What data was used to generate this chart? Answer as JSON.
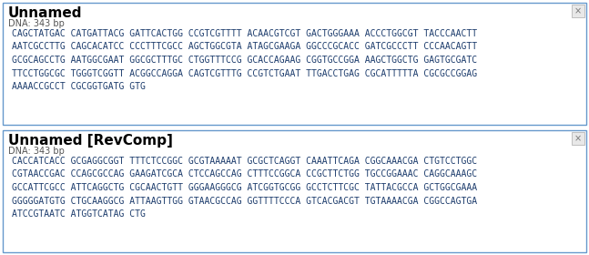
{
  "panel1_title": "Unnamed",
  "panel1_subtitle": "DNA: 343 bp",
  "panel1_lines": [
    "CAGCTATGAC CATGATTACG GATTCACTGG CCGTCGTTTT ACAACGTCGT GACTGGGAAA ACCCTGGCGT TACCCAACTT",
    "AATCGCCTTG CAGCACATCC CCCTTTCGCC AGCTGGCGTA ATAGCGAAGA GGCCCGCACC GATCGCCCTT CCCAACAGTT",
    "GCGCAGCCTG AATGGCGAAT GGCGCTTTGC CTGGTTTCCG GCACCAGAAG CGGTGCCGGA AAGCTGGCTG GAGTGCGATC",
    "TTCCTGGCGC TGGGTCGGTT ACGGCCAGGA CAGTCGTTTG CCGTCTGAAT TTGACCTGAG CGCATTTTTA CGCGCCGGAG",
    "AAAACCGCCT CGCGGTGATG GTG"
  ],
  "panel2_title": "Unnamed [RevComp]",
  "panel2_subtitle": "DNA: 343 bp",
  "panel2_lines": [
    "CACCATCACC GCGAGGCGGT TTTCTCCGGC GCGTAAAAAT GCGCTCAGGT CAAATTCAGA CGGCAAACGA CTGTCCTGGC",
    "CGTAACCGAC CCAGCGCCAG GAAGATCGCA CTCCAGCCAG CTTTCCGGCA CCGCTTCTGG TGCCGGAAAC CAGGCAAAGC",
    "GCCATTCGCC ATTCAGGCTG CGCAACTGTT GGGAAGGGCG ATCGGTGCGG GCCTCTTCGC TATTACGCCA GCTGGCGAAA",
    "GGGGGATGTG CTGCAAGGCG ATTAAGTTGG GTAACGCCAG GGTTTTCCCA GTCACGACGT TGTAAAACGA CGGCCAGTGA",
    "ATCCGTAATC ATGGTCATAG CTG"
  ],
  "bg_color": "#ffffff",
  "border_color": "#6699cc",
  "title_color": "#000000",
  "subtitle_color": "#555555",
  "seq_color": "#1a3a6b",
  "title_fontsize": 11,
  "subtitle_fontsize": 7,
  "seq_fontsize": 7,
  "x_button_color": "#aaaaaa",
  "x_button_bg": "#e0e0e0"
}
